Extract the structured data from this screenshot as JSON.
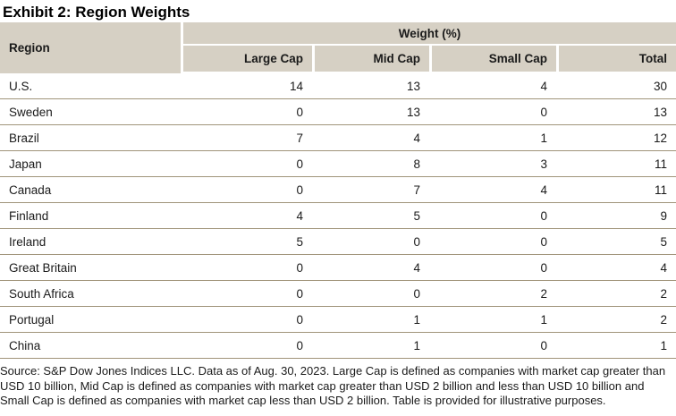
{
  "title": "Exhibit 2: Region Weights",
  "chart_data": {
    "type": "table",
    "title": "Exhibit 2: Region Weights",
    "group_header": "Weight (%)",
    "region_column_header": "Region",
    "value_columns": [
      "Large Cap",
      "Mid Cap",
      "Small Cap",
      "Total"
    ],
    "rows": [
      {
        "region": "U.S.",
        "values": [
          14,
          13,
          4,
          30
        ]
      },
      {
        "region": "Sweden",
        "values": [
          0,
          13,
          0,
          13
        ]
      },
      {
        "region": "Brazil",
        "values": [
          7,
          4,
          1,
          12
        ]
      },
      {
        "region": "Japan",
        "values": [
          0,
          8,
          3,
          11
        ]
      },
      {
        "region": "Canada",
        "values": [
          0,
          7,
          4,
          11
        ]
      },
      {
        "region": "Finland",
        "values": [
          4,
          5,
          0,
          9
        ]
      },
      {
        "region": "Ireland",
        "values": [
          5,
          0,
          0,
          5
        ]
      },
      {
        "region": "Great Britain",
        "values": [
          0,
          4,
          0,
          4
        ]
      },
      {
        "region": "South Africa",
        "values": [
          0,
          0,
          2,
          2
        ]
      },
      {
        "region": "Portugal",
        "values": [
          0,
          1,
          1,
          2
        ]
      },
      {
        "region": "China",
        "values": [
          0,
          1,
          0,
          1
        ]
      }
    ]
  },
  "footer": {
    "source": "Source: S&P Dow Jones Indices LLC. Data as of Aug. 30, 2023. Large Cap is defined as companies with market cap greater than USD 10 billion, Mid Cap is defined as companies with market cap greater than USD 2 billion and less than USD 10 billion and Small Cap is defined as companies with market cap less than USD 2 billion. Table is provided for illustrative purposes."
  },
  "colors": {
    "header_background": "#d6d0c4",
    "row_divider": "#a0947a",
    "text": "#1a1a1a"
  }
}
